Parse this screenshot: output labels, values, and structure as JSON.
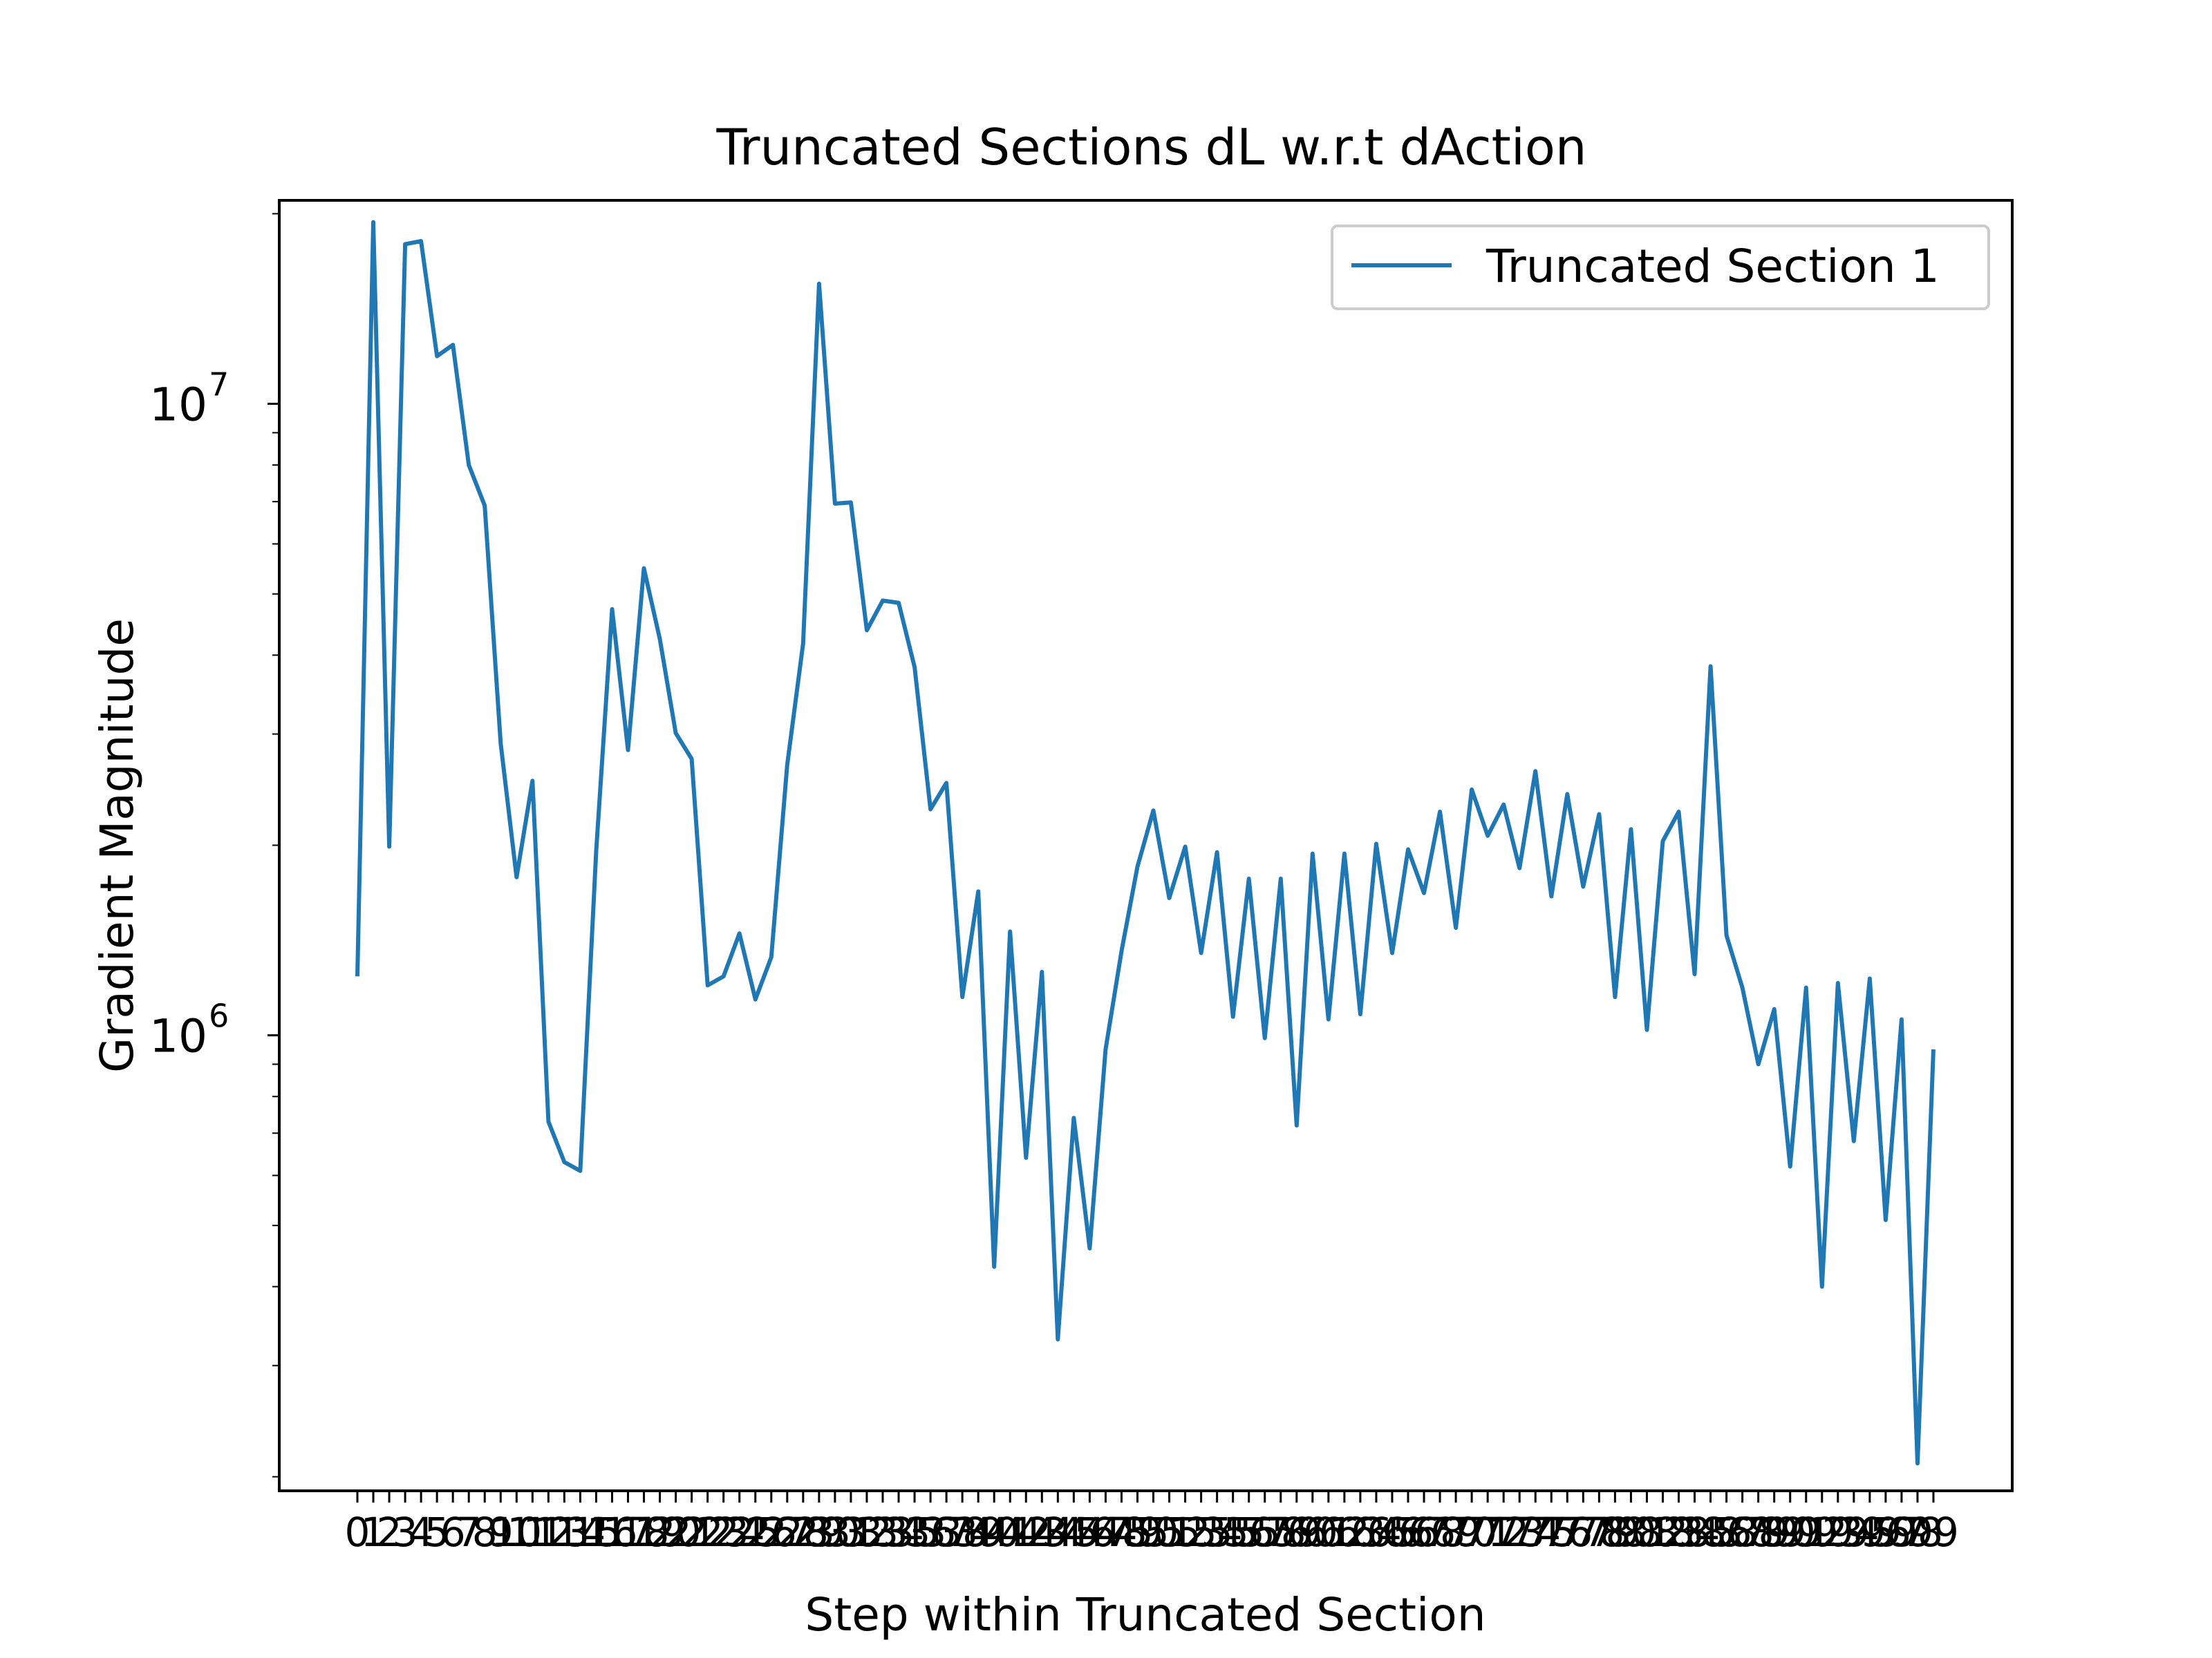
{
  "chart_data": {
    "type": "line",
    "title": "Truncated Sections dL w.r.t dAction",
    "xlabel": "Step within Truncated Section",
    "ylabel": "Gradient Magnitude",
    "yscale": "log",
    "ylim": [
      190000,
      21000000
    ],
    "grid": false,
    "legend_position": "top-right",
    "x": [
      0,
      1,
      2,
      3,
      4,
      5,
      6,
      7,
      8,
      9,
      10,
      11,
      12,
      13,
      14,
      15,
      16,
      17,
      18,
      19,
      20,
      21,
      22,
      23,
      24,
      25,
      26,
      27,
      28,
      29,
      30,
      31,
      32,
      33,
      34,
      35,
      36,
      37,
      38,
      39,
      40,
      41,
      42,
      43,
      44,
      45,
      46,
      47,
      48,
      49,
      50,
      51,
      52,
      53,
      54,
      55,
      56,
      57,
      58,
      59,
      60,
      61,
      62,
      63,
      64,
      65,
      66,
      67,
      68,
      69,
      70,
      71,
      72,
      73,
      74,
      75,
      76,
      77,
      78,
      79,
      80,
      81,
      82,
      83,
      84,
      85,
      86,
      87,
      88,
      89,
      90,
      91,
      92,
      93,
      94,
      95,
      96,
      97,
      98,
      99
    ],
    "series": [
      {
        "name": "Truncated Section 1",
        "color": "#1f77b4",
        "values": [
          1240000,
          19400000,
          1990000,
          17900000,
          18100000,
          11900000,
          12400000,
          8000000,
          6900000,
          2900000,
          1780000,
          2530000,
          730000,
          630000,
          610000,
          1960000,
          4730000,
          2830000,
          5490000,
          4240000,
          3010000,
          2740000,
          1200000,
          1240000,
          1450000,
          1140000,
          1330000,
          2680000,
          4170000,
          15500000,
          6950000,
          6980000,
          4380000,
          4880000,
          4840000,
          3830000,
          2280000,
          2510000,
          1150000,
          1690000,
          430000,
          1460000,
          640000,
          1260000,
          330000,
          740000,
          460000,
          950000,
          1360000,
          1850000,
          2270000,
          1650000,
          1990000,
          1350000,
          1950000,
          1070000,
          1770000,
          990000,
          1770000,
          720000,
          1940000,
          1060000,
          1940000,
          1080000,
          2010000,
          1350000,
          1970000,
          1680000,
          2260000,
          1480000,
          2450000,
          2070000,
          2320000,
          1840000,
          2620000,
          1660000,
          2410000,
          1720000,
          2240000,
          1150000,
          2120000,
          1020000,
          2030000,
          2260000,
          1250000,
          3840000,
          1440000,
          1190000,
          900000,
          1100000,
          620000,
          1190000,
          400000,
          1210000,
          680000,
          1230000,
          510000,
          1060000,
          210000,
          950000
        ]
      }
    ],
    "y_ticks": [
      {
        "value": 1000000,
        "label": "10",
        "exp": "6"
      },
      {
        "value": 10000000,
        "label": "10",
        "exp": "7"
      }
    ]
  }
}
